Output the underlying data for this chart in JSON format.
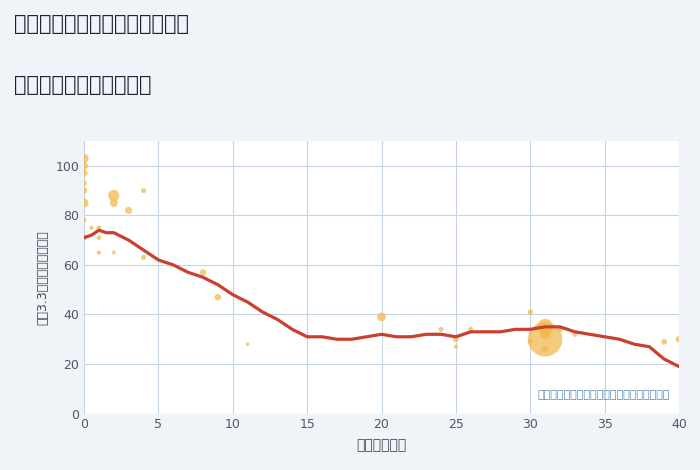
{
  "title_line1": "兵庫県川辺郡猪名川町柏梨田の",
  "title_line2": "築年数別中古戸建て価格",
  "xlabel": "築年数（年）",
  "ylabel": "坪（3.3㎡）単価（万円）",
  "annotation": "円の大きさは、取引のあった物件面積を示す",
  "fig_bg_color": "#f0f4f8",
  "plot_bg_color": "#ffffff",
  "line_color": "#c94030",
  "scatter_color": "#f0b84a",
  "scatter_alpha": 0.72,
  "xlim": [
    0,
    40
  ],
  "ylim": [
    0,
    110
  ],
  "xticks": [
    0,
    5,
    10,
    15,
    20,
    25,
    30,
    35,
    40
  ],
  "yticks": [
    0,
    20,
    40,
    60,
    80,
    100
  ],
  "line_x": [
    0,
    0.5,
    1,
    1.5,
    2,
    3,
    4,
    5,
    6,
    7,
    8,
    9,
    10,
    11,
    12,
    13,
    14,
    15,
    16,
    17,
    18,
    19,
    20,
    21,
    22,
    23,
    24,
    25,
    26,
    27,
    28,
    29,
    30,
    31,
    32,
    33,
    34,
    35,
    36,
    37,
    38,
    39,
    40
  ],
  "line_y": [
    71,
    72,
    74,
    73,
    73,
    70,
    66,
    62,
    60,
    57,
    55,
    52,
    48,
    45,
    41,
    38,
    34,
    31,
    31,
    30,
    30,
    31,
    32,
    31,
    31,
    32,
    32,
    31,
    33,
    33,
    33,
    34,
    34,
    35,
    35,
    33,
    32,
    31,
    30,
    28,
    27,
    22,
    19
  ],
  "scatter_x": [
    0,
    0,
    0,
    0,
    0,
    0,
    0,
    0,
    0.5,
    1,
    1,
    1,
    2,
    2,
    2,
    3,
    4,
    4,
    8,
    9,
    11,
    20,
    24,
    25,
    25,
    26,
    30,
    30,
    31,
    31,
    31,
    31,
    32,
    33,
    39,
    40
  ],
  "scatter_y": [
    103,
    100,
    97,
    93,
    90,
    85,
    78,
    71,
    75,
    75,
    71,
    65,
    88,
    85,
    65,
    82,
    90,
    63,
    57,
    47,
    28,
    39,
    34,
    30,
    27,
    34,
    41,
    29,
    30,
    35,
    32,
    26,
    34,
    32,
    29,
    30
  ],
  "scatter_size": [
    200,
    150,
    120,
    80,
    100,
    200,
    60,
    80,
    40,
    60,
    50,
    40,
    300,
    150,
    40,
    120,
    60,
    60,
    100,
    100,
    30,
    180,
    60,
    80,
    40,
    60,
    70,
    60,
    2800,
    600,
    250,
    100,
    80,
    60,
    80,
    100
  ]
}
